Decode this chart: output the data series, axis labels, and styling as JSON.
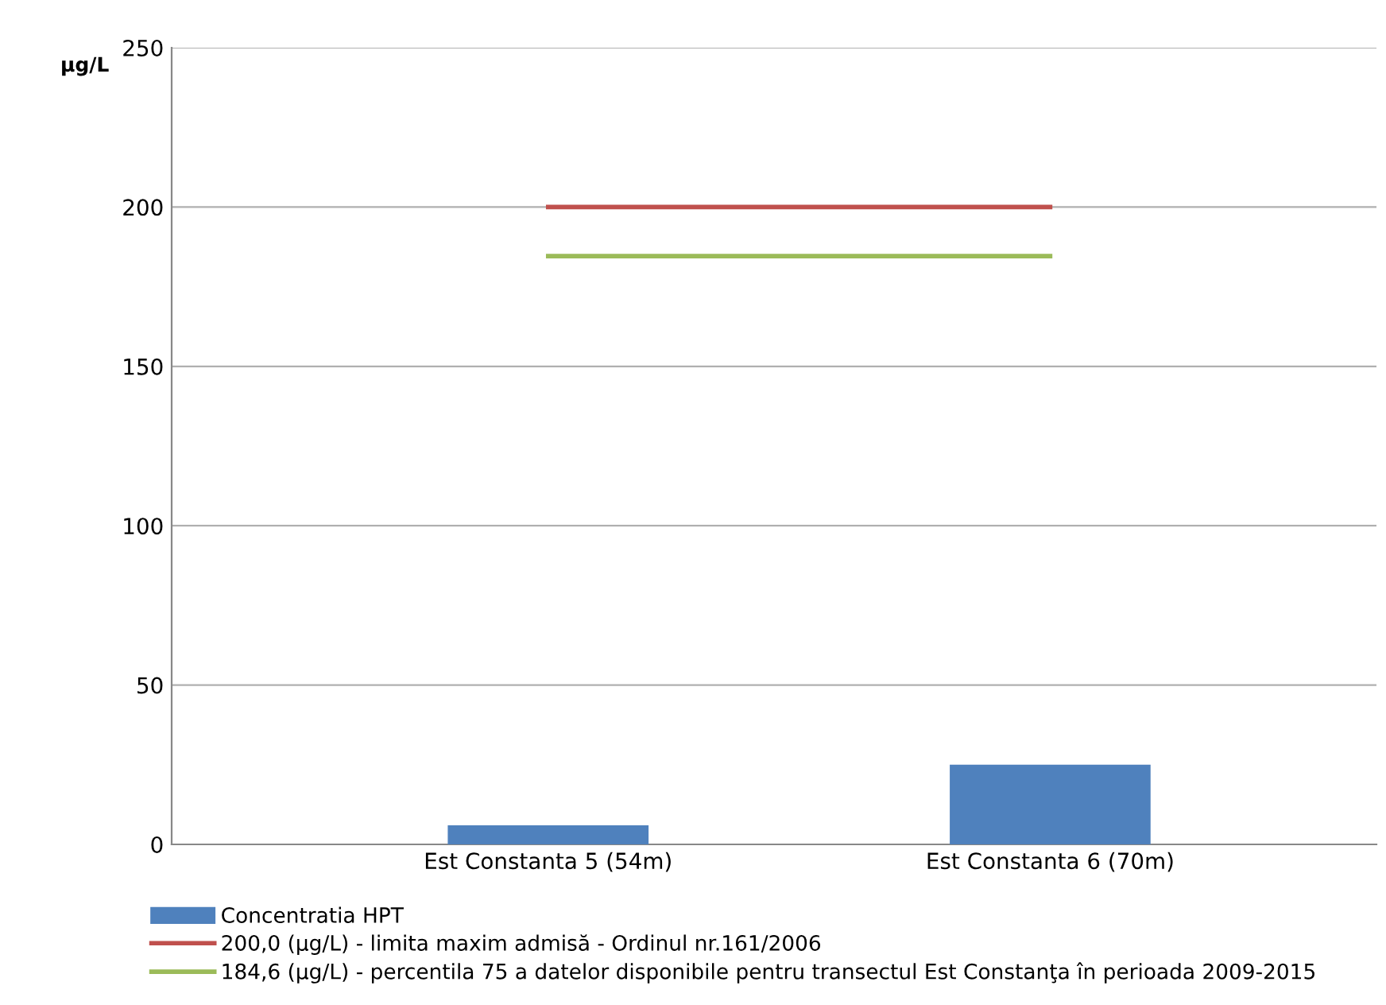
{
  "chart_data": {
    "type": "bar",
    "ylabel": "µg/L",
    "categories": [
      "Est Constanta 5 (54m)",
      "Est Constanta 6 (70m)"
    ],
    "series": [
      {
        "name": "Concentratia HPT",
        "color": "#4f81bd",
        "values": [
          6,
          25
        ]
      },
      {
        "name": "200,0 (µg/L) - limita maxim admisă - Ordinul nr.161/2006",
        "type": "line",
        "color": "#c0504d",
        "values": [
          200,
          200
        ]
      },
      {
        "name": "184,6 (µg/L) - percentila 75 a datelor disponibile pentru transectul Est Constanţa în perioada 2009-2015",
        "type": "line",
        "color": "#9bbb59",
        "values": [
          184.6,
          184.6
        ]
      }
    ],
    "ylim": [
      0,
      250
    ],
    "yticks": [
      0,
      50,
      100,
      150,
      200,
      250
    ],
    "grid": "y",
    "legend": "bottom"
  }
}
